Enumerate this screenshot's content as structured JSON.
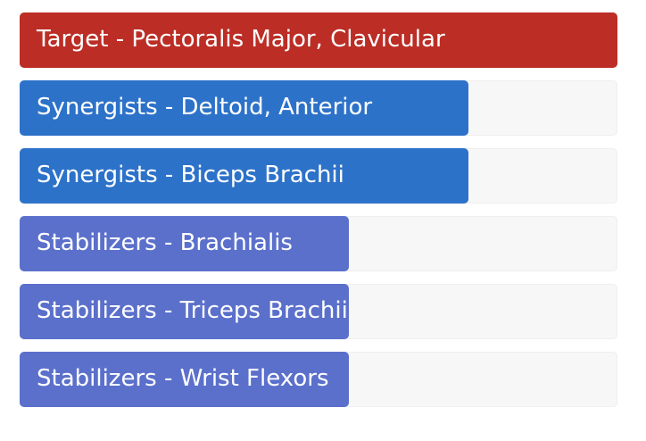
{
  "colors": {
    "target": "#bb2d25",
    "synergist": "#2d72c9",
    "stabilizer": "#5b70cb",
    "track": "#f7f7f7"
  },
  "muscles": [
    {
      "label": "Target - Pectoralis Major, Clavicular",
      "role": "target",
      "fill_fraction": 1.0
    },
    {
      "label": "Synergists - Deltoid, Anterior",
      "role": "synergist",
      "fill_fraction": 0.75
    },
    {
      "label": "Synergists - Biceps Brachii",
      "role": "synergist",
      "fill_fraction": 0.75
    },
    {
      "label": "Stabilizers - Brachialis",
      "role": "stabilizer",
      "fill_fraction": 0.55
    },
    {
      "label": "Stabilizers - Triceps Brachii",
      "role": "stabilizer",
      "fill_fraction": 0.55
    },
    {
      "label": "Stabilizers - Wrist Flexors",
      "role": "stabilizer",
      "fill_fraction": 0.55
    }
  ]
}
